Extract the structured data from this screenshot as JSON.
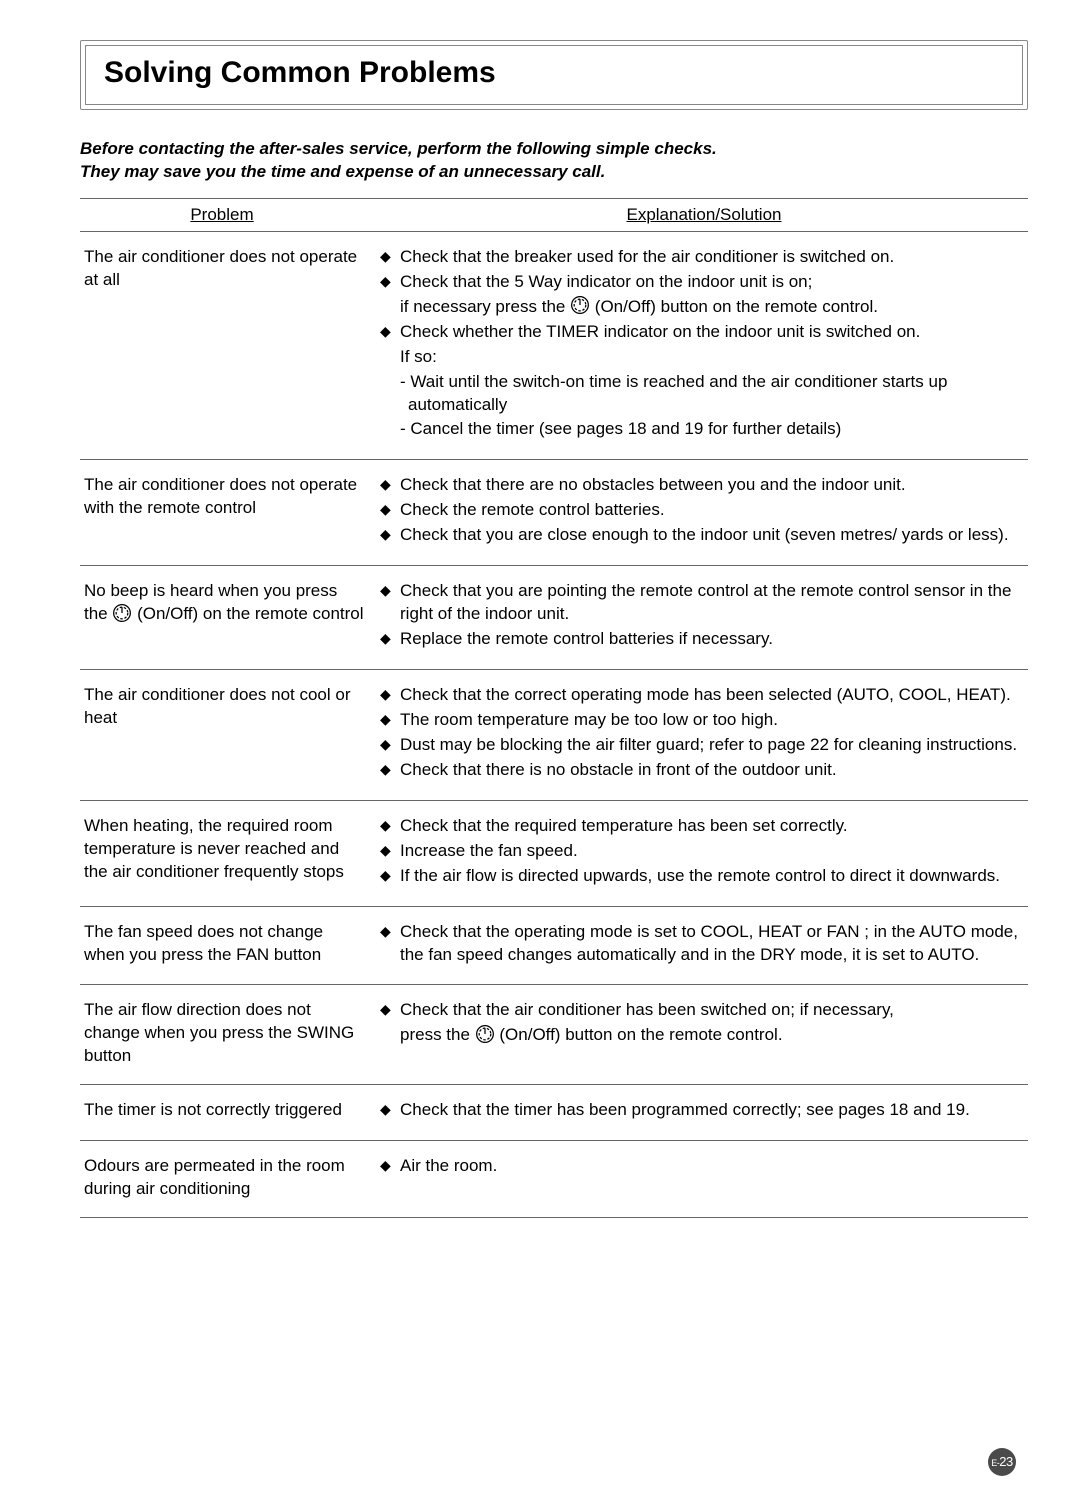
{
  "title": "Solving Common Problems",
  "intro": {
    "line1": "Before contacting the after-sales service, perform the following simple checks.",
    "line2": "They may save you the time and expense of an unnecessary call."
  },
  "headers": {
    "problem": "Problem",
    "solution": "Explanation/Solution"
  },
  "page_number": {
    "prefix": "E-",
    "num": "23"
  },
  "colors": {
    "text": "#000000",
    "border": "#666666",
    "bg": "#ffffff",
    "badge_bg": "#4a4a4a",
    "badge_fg": "#ffffff"
  },
  "rows": [
    {
      "problem": "The air conditioner does not operate at all",
      "items": [
        {
          "type": "bullet",
          "text": "Check that the breaker used for the air conditioner is switched on."
        },
        {
          "type": "bullet",
          "text": "Check that the 5 Way indicator on the indoor unit is on;"
        },
        {
          "type": "line",
          "icon": true,
          "pre": "if necessary press the ",
          "post": " (On/Off) button on the remote control."
        },
        {
          "type": "bullet",
          "text": "Check whether the TIMER indicator on the indoor unit is switched on."
        },
        {
          "type": "line",
          "text": "If so:"
        },
        {
          "type": "dash",
          "text": "- Wait until the switch-on time is reached and the air conditioner starts up automatically"
        },
        {
          "type": "dash",
          "text": "- Cancel the timer (see pages 18 and 19 for further details)"
        }
      ]
    },
    {
      "problem": "The air conditioner does not operate with the remote control",
      "items": [
        {
          "type": "bullet",
          "text": "Check that there are no obstacles between you and the indoor unit."
        },
        {
          "type": "bullet",
          "text": "Check the remote control batteries."
        },
        {
          "type": "bullet",
          "text": "Check that you are close enough to the indoor unit (seven metres/ yards or less)."
        }
      ]
    },
    {
      "problem_parts": [
        {
          "text": "No beep is heard when you press the "
        },
        {
          "icon": true
        },
        {
          "text": " (On/Off) on the remote control"
        }
      ],
      "items": [
        {
          "type": "bullet",
          "text": "Check that you are pointing the remote control at the remote control sensor in the right of the indoor unit."
        },
        {
          "type": "bullet",
          "text": "Replace the remote control batteries if necessary."
        }
      ]
    },
    {
      "problem": "The air conditioner does not cool or heat",
      "items": [
        {
          "type": "bullet",
          "text": "Check that the correct operating mode has been selected (AUTO, COOL, HEAT)."
        },
        {
          "type": "bullet",
          "text": "The room temperature may be too low or too high."
        },
        {
          "type": "bullet",
          "text": "Dust may be blocking the air filter guard; refer to page 22 for cleaning instructions."
        },
        {
          "type": "bullet",
          "text": "Check that there is no obstacle in front of the outdoor unit."
        }
      ]
    },
    {
      "problem": "When heating, the required room temperature is never reached and the air conditioner frequently stops",
      "items": [
        {
          "type": "bullet",
          "text": "Check that the required temperature has been set correctly."
        },
        {
          "type": "bullet",
          "text": "Increase the fan speed."
        },
        {
          "type": "bullet",
          "text": "If the air flow is directed upwards, use the remote control to direct it downwards."
        }
      ]
    },
    {
      "problem": "The fan speed does not change when you press the FAN button",
      "items": [
        {
          "type": "bullet",
          "text": "Check that the operating mode is set to COOL, HEAT or FAN ; in the AUTO mode, the fan speed changes automatically and in the DRY mode, it is set to AUTO."
        }
      ]
    },
    {
      "problem": "The air flow direction does not change when you press the SWING button",
      "items": [
        {
          "type": "bullet",
          "text": "Check that the air conditioner has been switched on; if necessary,"
        },
        {
          "type": "line",
          "icon": true,
          "pre": "press the  ",
          "post": " (On/Off) button on the remote control."
        }
      ]
    },
    {
      "problem": "The timer is not correctly triggered",
      "items": [
        {
          "type": "bullet",
          "text": "Check that the timer has been programmed correctly; see pages 18 and 19."
        }
      ]
    },
    {
      "problem": "Odours are permeated in the room during air conditioning",
      "items": [
        {
          "type": "bullet",
          "text": "Air the room."
        }
      ]
    }
  ]
}
